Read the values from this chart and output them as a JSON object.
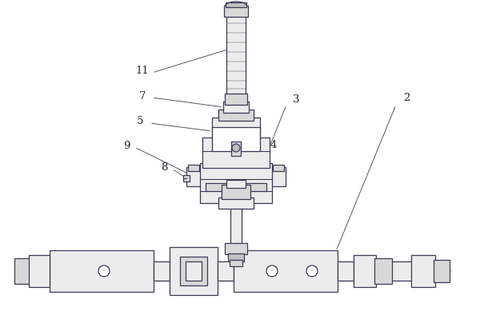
{
  "bg_color": "#ffffff",
  "line_color": "#3a3a5a",
  "fill_light": "#ececec",
  "fill_mid": "#d8d8d8",
  "fill_dark": "#c0c0c0",
  "fig_w": 6.0,
  "fig_h": 4.1,
  "dpi": 100
}
